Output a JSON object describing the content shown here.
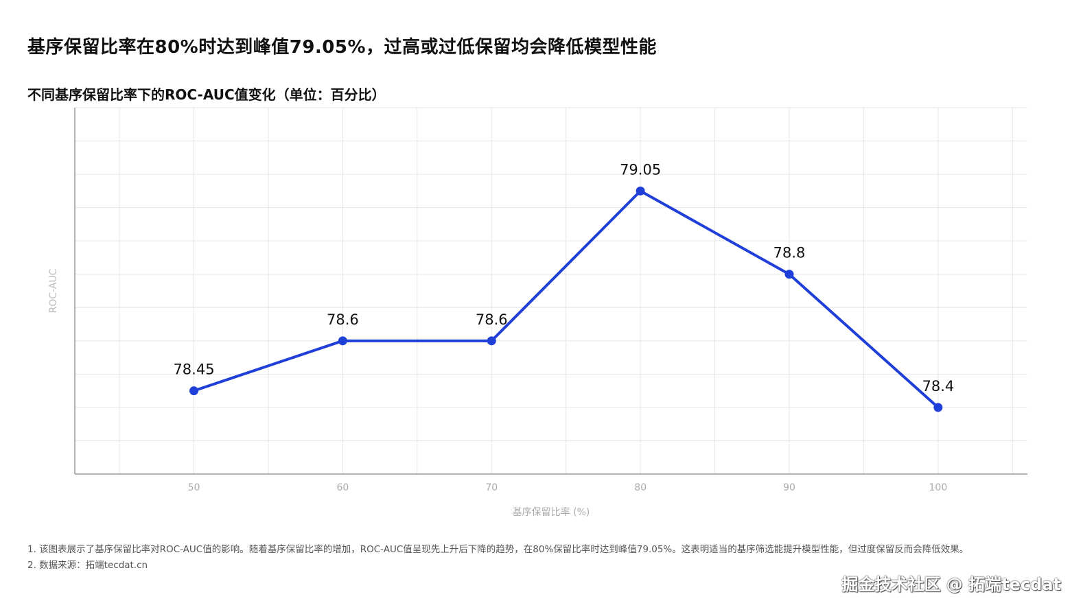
{
  "title": "基序保留比率在80%时达到峰值79.05%，过高或过低保留均会降低模型性能",
  "chart_data": {
    "type": "line",
    "title": "不同基序保留比率下的ROC-AUC值变化（单位：百分比）",
    "xlabel": "基序保留比率 (%)",
    "ylabel": "ROC-AUC",
    "x": [
      50,
      60,
      70,
      80,
      90,
      100
    ],
    "x_tick_labels": [
      "50",
      "60",
      "70",
      "80",
      "90",
      "100"
    ],
    "xlim": [
      42,
      106
    ],
    "ylim": [
      78.2,
      79.3
    ],
    "series": [
      {
        "values": [
          78.45,
          78.6,
          78.6,
          79.05,
          78.8,
          78.4
        ],
        "data_labels": [
          "78.45",
          "78.6",
          "78.6",
          "79.05",
          "78.8",
          "78.4"
        ],
        "color": "#1f3fd8"
      }
    ],
    "grid": true,
    "legend": "none"
  },
  "footnotes": [
    "1. 该图表展示了基序保留比率对ROC-AUC值的影响。随着基序保留比率的增加，ROC-AUC值呈现先上升后下降的趋势，在80%保留比率时达到峰值79.05%。这表明适当的基序筛选能提升模型性能，但过度保留反而会降低效果。",
    "2. 数据来源：拓端tecdat.cn"
  ],
  "watermark": "掘金技术社区 @ 拓端tecdat",
  "colors": {
    "line": "#1f3fd8",
    "grid": "#e6e6e6",
    "axis": "#999999",
    "tick_text": "#aaaaaa"
  }
}
